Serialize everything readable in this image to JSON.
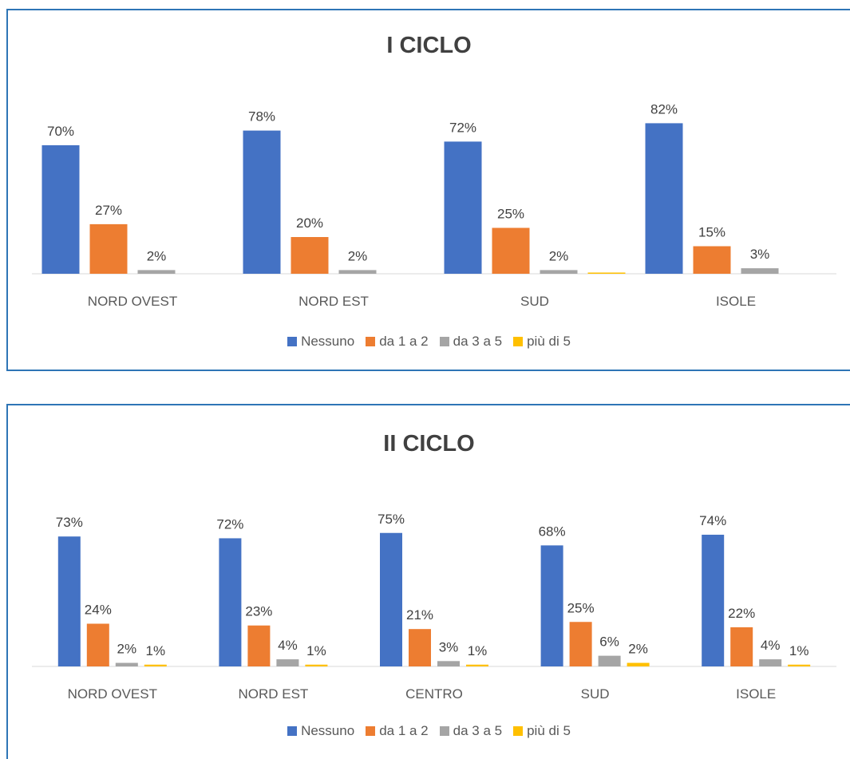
{
  "chart_data": [
    {
      "type": "bar",
      "title": "I CICLO",
      "categories": [
        "NORD OVEST",
        "NORD EST",
        "SUD",
        "ISOLE"
      ],
      "series": [
        {
          "name": "Nessuno",
          "values": [
            70,
            78,
            72,
            82
          ],
          "labels": [
            "70%",
            "78%",
            "72%",
            "82%"
          ],
          "color": "#4472c4"
        },
        {
          "name": "da 1 a 2",
          "values": [
            27,
            20,
            25,
            15
          ],
          "labels": [
            "27%",
            "20%",
            "25%",
            "15%"
          ],
          "color": "#ed7d31"
        },
        {
          "name": "da 3 a 5",
          "values": [
            2,
            2,
            2,
            3
          ],
          "labels": [
            "2%",
            "2%",
            "2%",
            "3%"
          ],
          "color": "#a5a5a5"
        },
        {
          "name": "più di 5",
          "values": [
            0,
            0,
            0.4,
            0
          ],
          "labels": [
            "",
            "",
            "",
            ""
          ],
          "color": "#ffc000"
        }
      ],
      "ylim": [
        0,
        90
      ],
      "grid": false,
      "legend": "bottom"
    },
    {
      "type": "bar",
      "title": "II CICLO",
      "categories": [
        "NORD OVEST",
        "NORD EST",
        "CENTRO",
        "SUD",
        "ISOLE"
      ],
      "series": [
        {
          "name": "Nessuno",
          "values": [
            73,
            72,
            75,
            68,
            74
          ],
          "labels": [
            "73%",
            "72%",
            "75%",
            "68%",
            "74%"
          ],
          "color": "#4472c4"
        },
        {
          "name": "da 1 a 2",
          "values": [
            24,
            23,
            21,
            25,
            22
          ],
          "labels": [
            "24%",
            "23%",
            "21%",
            "25%",
            "22%"
          ],
          "color": "#ed7d31"
        },
        {
          "name": "da 3 a 5",
          "values": [
            2,
            4,
            3,
            6,
            4
          ],
          "labels": [
            "2%",
            "4%",
            "3%",
            "6%",
            "4%"
          ],
          "color": "#a5a5a5"
        },
        {
          "name": "più di 5",
          "values": [
            1,
            1,
            1,
            2,
            1
          ],
          "labels": [
            "1%",
            "1%",
            "1%",
            "2%",
            "1%"
          ],
          "color": "#ffc000"
        }
      ],
      "ylim": [
        0,
        80
      ],
      "grid": false,
      "legend": "bottom"
    }
  ]
}
